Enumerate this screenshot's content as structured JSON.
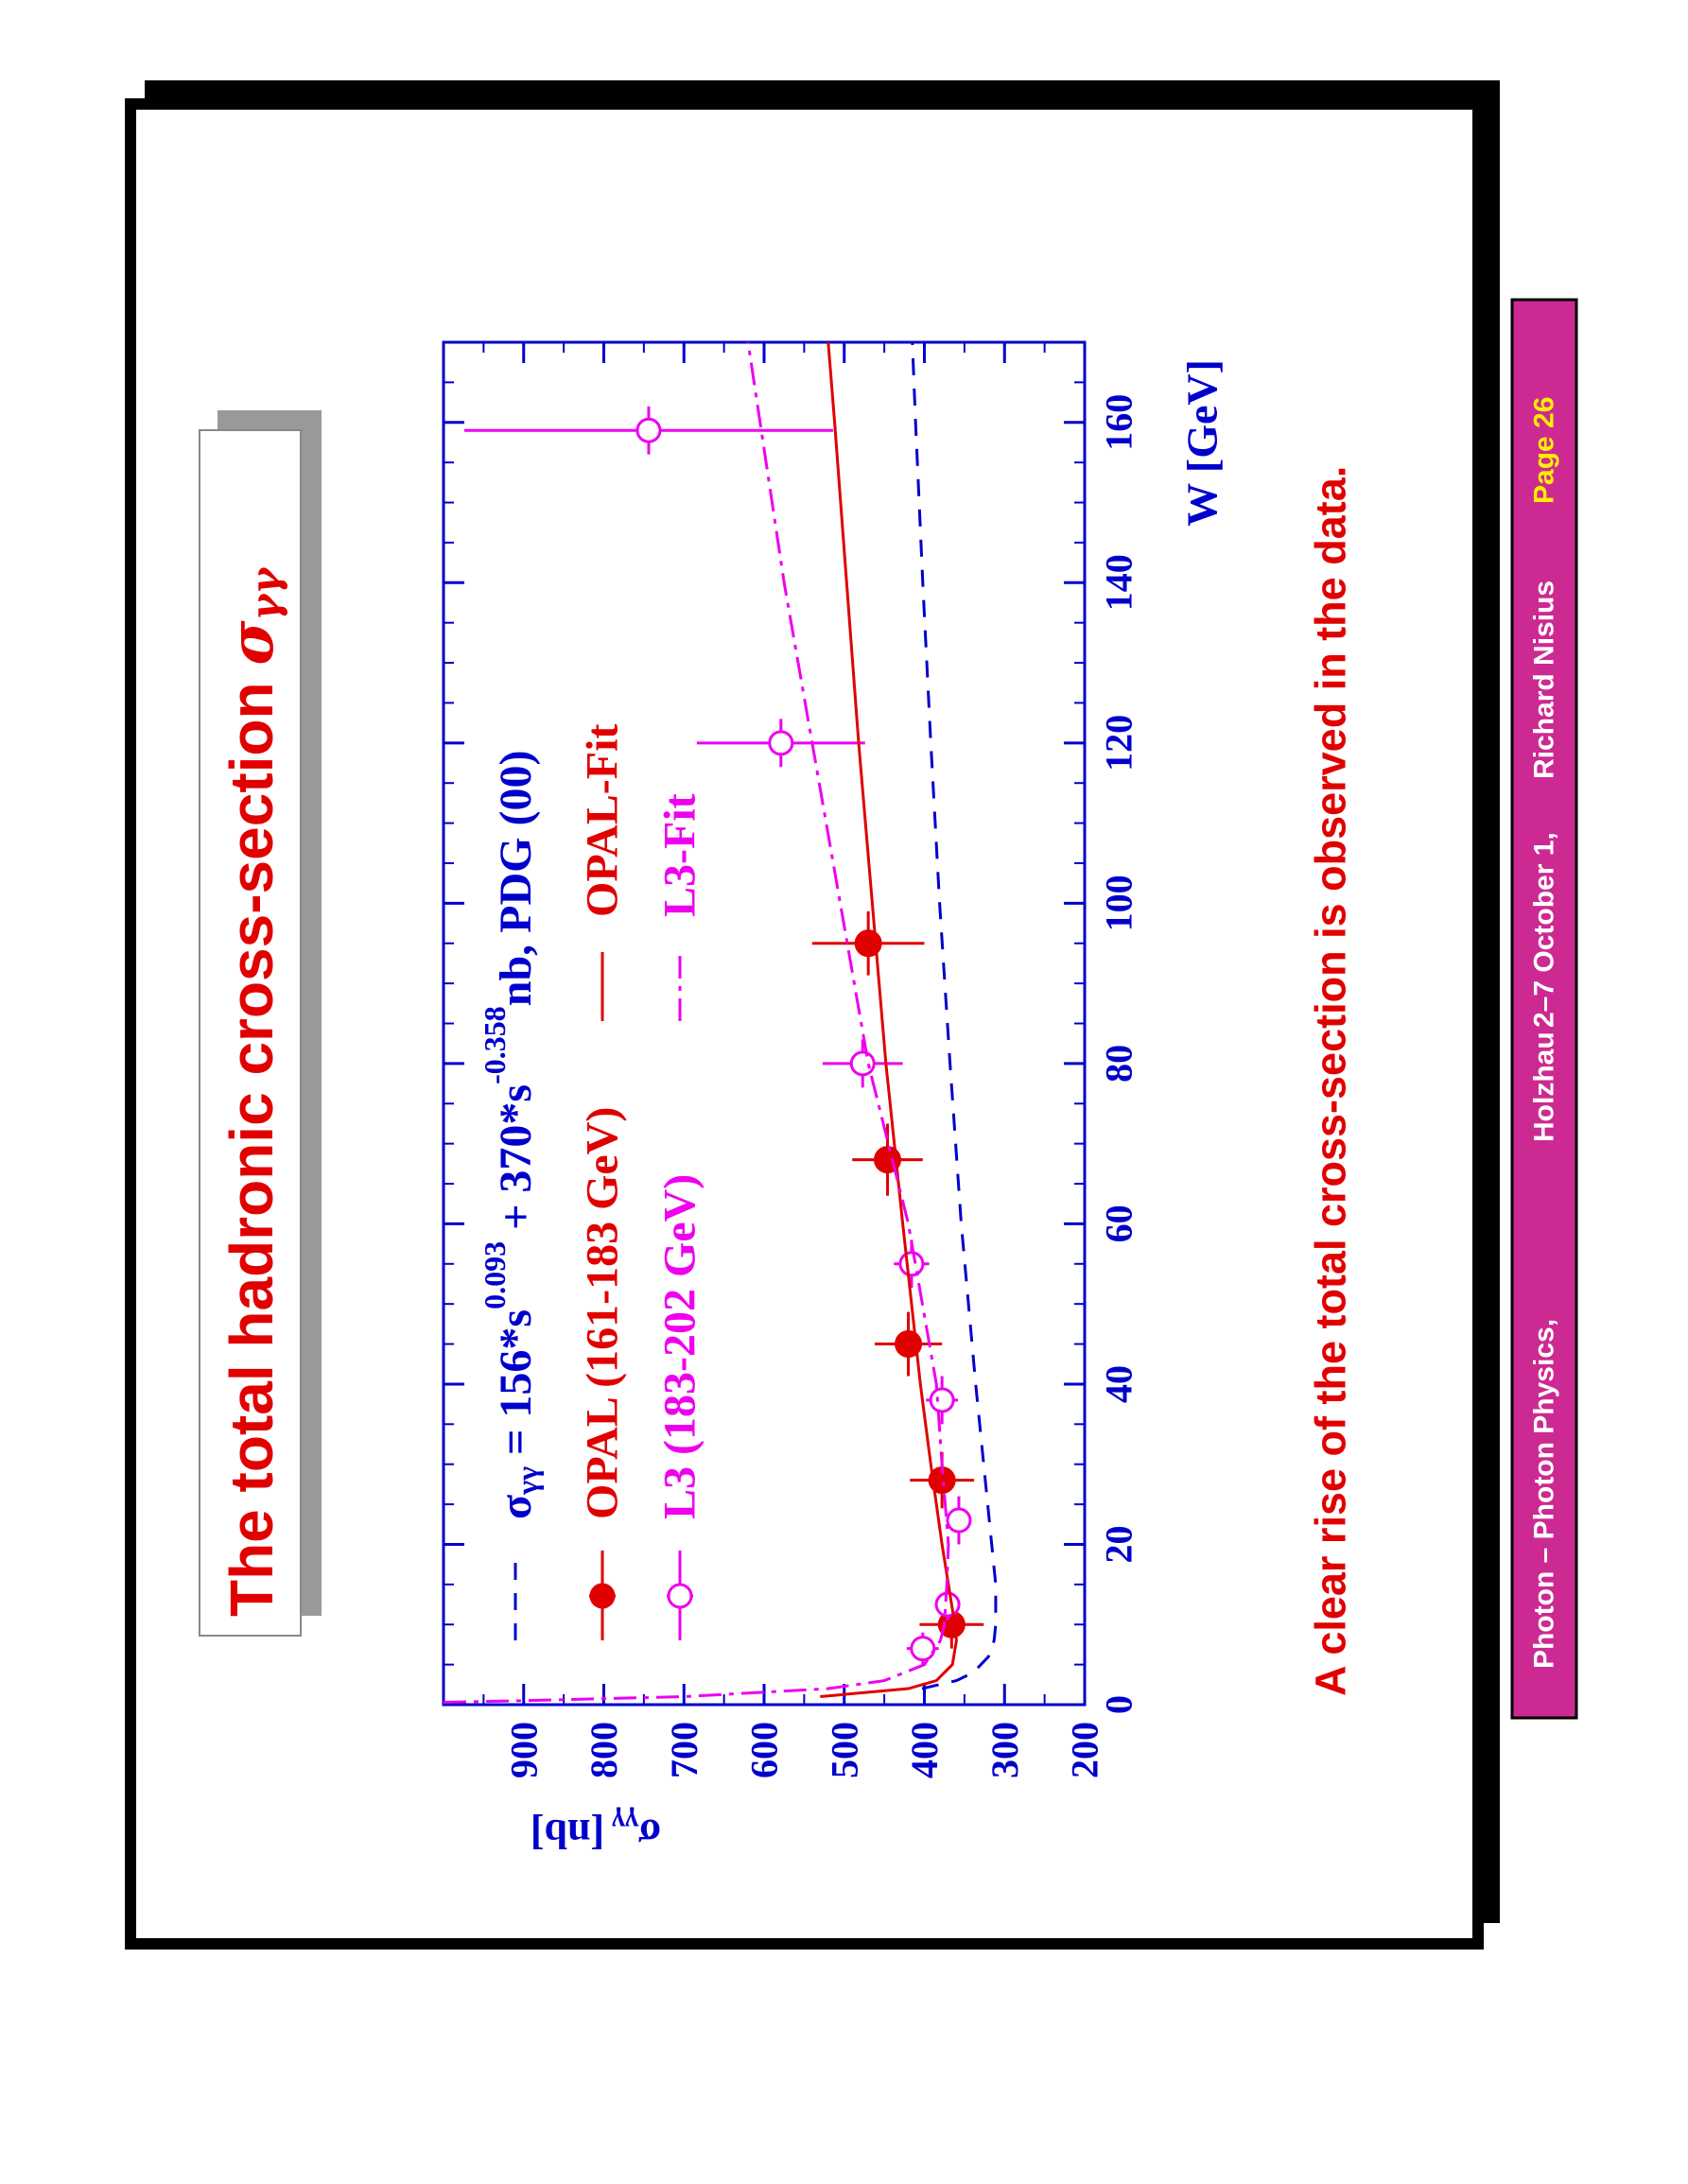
{
  "chart_data": {
    "type": "line",
    "title": {
      "text": "The total hadronic cross-section ",
      "symbol": "σ",
      "sub": "γγ"
    },
    "x_label": "W [GeV]",
    "y_label": {
      "symbol": "σ",
      "sub": "γγ",
      "unit": "[nb]"
    },
    "xlim": [
      0,
      170
    ],
    "ylim": [
      200,
      1000
    ],
    "xticks": [
      0,
      20,
      40,
      60,
      80,
      100,
      120,
      140,
      160
    ],
    "yticks": [
      200,
      300,
      400,
      500,
      600,
      700,
      800,
      900
    ],
    "xticks_minor": [
      5,
      10,
      15,
      25,
      30,
      35,
      45,
      50,
      55,
      65,
      70,
      75,
      85,
      90,
      95,
      105,
      110,
      115,
      125,
      130,
      135,
      145,
      150,
      155,
      165
    ],
    "yticks_minor": [
      250,
      350,
      450,
      550,
      650,
      750,
      850,
      950
    ],
    "axis_color": "#0000cc",
    "series": [
      {
        "type": "line",
        "style": "dashed",
        "color": "#0000cc",
        "name_parts": {
          "symbol": "σ",
          "sub": "γγ",
          "t1": " = 156*s",
          "e1": "0.093",
          "t2": " + 370*s",
          "e2": "-0.358",
          "tail": "nb, PDG (00)"
        },
        "x": [
          2,
          3,
          4,
          6,
          8,
          10,
          15,
          20,
          30,
          40,
          60,
          80,
          100,
          120,
          140,
          160,
          170
        ],
        "values": [
          403,
          360,
          339,
          320,
          313,
          311,
          311,
          316,
          326,
          336,
          354,
          368,
          381,
          392,
          402,
          411,
          415
        ]
      },
      {
        "type": "errorbar",
        "marker": "filled",
        "color": "#e00000",
        "name": "OPAL (161-183 GeV)",
        "x": [
          10,
          28,
          45,
          68,
          95
        ],
        "values": [
          366,
          378,
          420,
          446,
          470
        ],
        "yerr": [
          40,
          40,
          42,
          44,
          70
        ],
        "xerr": [
          3,
          3.5,
          4,
          4.5,
          4
        ]
      },
      {
        "type": "errorbar",
        "marker": "open",
        "color": "#ee00ee",
        "name": "L3 (183-202 GeV)",
        "x": [
          7,
          12.5,
          23,
          38,
          55,
          80,
          120,
          159
        ],
        "values": [
          402,
          371,
          357,
          378,
          416,
          477,
          579,
          744
        ],
        "yerr": [
          20,
          12,
          12,
          20,
          22,
          50,
          105,
          230
        ],
        "xerr": [
          2,
          2,
          3,
          3,
          3,
          3,
          3,
          3
        ]
      },
      {
        "type": "line",
        "style": "solid",
        "color": "#e00000",
        "name": "OPAL-Fit",
        "x": [
          1,
          2,
          3,
          5,
          8,
          10,
          20,
          30,
          40,
          60,
          80,
          100,
          120,
          140,
          160,
          170
        ],
        "values": [
          530,
          420,
          385,
          365,
          360,
          362,
          378,
          392,
          405,
          427,
          448,
          465,
          482,
          497,
          512,
          520
        ]
      },
      {
        "type": "line",
        "style": "dashdot",
        "color": "#ee00ee",
        "name": "L3-Fit",
        "x": [
          0.3,
          0.5,
          1,
          2,
          3,
          5,
          8,
          10,
          15,
          20,
          30,
          40,
          60,
          80,
          100,
          120,
          140,
          160,
          170
        ],
        "values": [
          1000,
          900,
          700,
          520,
          450,
          400,
          380,
          375,
          372,
          370,
          378,
          385,
          420,
          470,
          505,
          540,
          575,
          605,
          620
        ]
      }
    ]
  },
  "slide": {
    "conclusion": "A clear rise of the total cross-section is observed in the data.",
    "footer": {
      "talk": "Photon – Photon Physics,",
      "place": "Holzhau",
      "date": "2–7 October 1,",
      "author": "Richard Nisius",
      "page": "Page 26"
    }
  }
}
